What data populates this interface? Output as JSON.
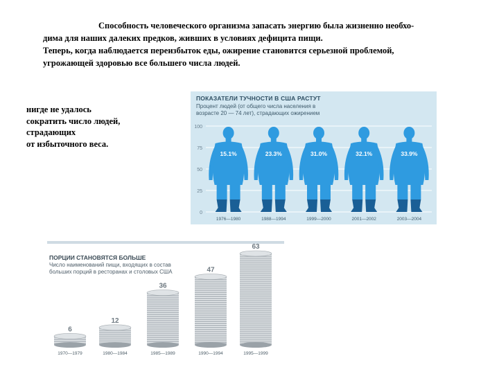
{
  "intro": {
    "line1": "Способность человеческого организма запасать энергию была жизненно необхо-",
    "line2": "дима для наших далеких предков, живших в условиях дефицита пищи.",
    "line3": "Теперь, когда наблюдается переизбыток еды, ожирение становится серьезной проблемой,",
    "line4": "угрожающей здоровью все большего числа людей."
  },
  "side_note": {
    "line1": "нигде не удалось",
    "line2": "сократить число людей,",
    "line3": "страдающих",
    "line4": "от избыточного веса."
  },
  "colors": {
    "figure_bg": "#d3e7f1",
    "body_light": "#2f9be0",
    "body_dark": "#1a5f96",
    "grid": "#ffffff",
    "plate": "#b9bfc4"
  },
  "chart_data": [
    {
      "type": "bar",
      "title": "ПОКАЗАТЕЛИ ТУЧНОСТИ В США РАСТУТ",
      "subtitle": "Процент людей (от общего числа населения в возрасте 20 — 74 лет), страдающих ожирением",
      "yticks": [
        "100",
        "75",
        "50",
        "25",
        "0"
      ],
      "ylim": [
        0,
        100
      ],
      "grid": true,
      "categories": [
        "1976—1980",
        "1988—1994",
        "1999—2000",
        "2001—2002",
        "2003—2004"
      ],
      "values": [
        15.1,
        23.3,
        31.0,
        32.1,
        33.9
      ],
      "labels": [
        "15.1%",
        "23.3%",
        "31.0%",
        "32.1%",
        "33.9%"
      ]
    },
    {
      "type": "bar",
      "title": "ПОРЦИИ СТАНОВЯТСЯ БОЛЬШЕ",
      "subtitle": "Число наименований пищи, входящих в состав больших порций в ресторанах и столовых США",
      "categories": [
        "1970—1979",
        "1980—1984",
        "1985—1989",
        "1990—1994",
        "1995—1999"
      ],
      "values": [
        6,
        12,
        36,
        47,
        63
      ],
      "labels": [
        "6",
        "12",
        "36",
        "47",
        "63"
      ]
    }
  ]
}
